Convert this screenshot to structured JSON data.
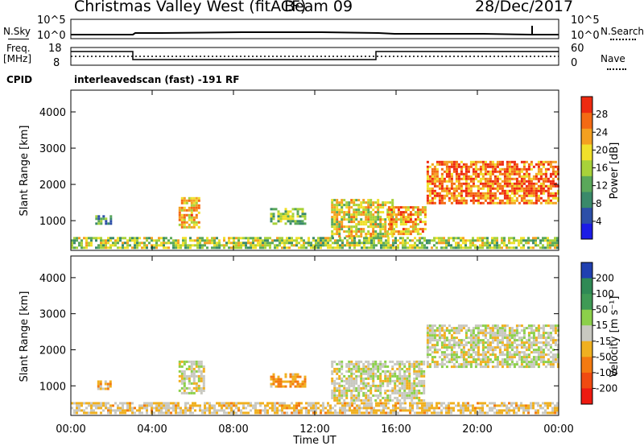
{
  "header": {
    "station": "Christmas Valley West (fitACF)",
    "beam": "Beam 09",
    "date": "28/Dec/2017"
  },
  "labels": {
    "nsky": "N.Sky",
    "nsearch": "N.Search",
    "freq": "Freq.",
    "freq_unit": "[MHz]",
    "nave": "Nave",
    "cpid": "CPID",
    "cpid_value": "interleavedscan (fast) -191 RF"
  },
  "noise_panel": {
    "left_ticks": [
      "10^5",
      "10^0"
    ],
    "right_ticks": [
      "10^5",
      "10^0"
    ]
  },
  "freq_panel": {
    "left_ticks": [
      "18",
      "8"
    ],
    "right_ticks": [
      "60",
      "0"
    ]
  },
  "colors": {
    "accent": "#000000"
  },
  "chart_data": [
    {
      "type": "heatmap",
      "quantity": "Power",
      "ylabel": "Slant Range [km]",
      "ylim": [
        180,
        4600
      ],
      "y_ticks": [
        "1000",
        "2000",
        "3000",
        "4000"
      ],
      "xlabel": "",
      "x_ticks": [],
      "xlim_hours": [
        0,
        24
      ],
      "colorbar": {
        "label": "Power [dB]",
        "ticks": [
          "4",
          "8",
          "12",
          "16",
          "20",
          "24",
          "28"
        ],
        "range": [
          0,
          32
        ],
        "colors": [
          "#1c1ce6",
          "#2d4fa8",
          "#3a8a6a",
          "#5aa85a",
          "#a8d23a",
          "#f0e02a",
          "#f4a020",
          "#f46a14",
          "#ee2a10"
        ]
      },
      "regions": [
        {
          "t0": 1.2,
          "t1": 2.0,
          "r0": 900,
          "r1": 1150,
          "level": 0.25
        },
        {
          "t0": 5.3,
          "t1": 6.3,
          "r0": 850,
          "r1": 1650,
          "level": 0.7
        },
        {
          "t0": 9.8,
          "t1": 11.5,
          "r0": 950,
          "r1": 1350,
          "level": 0.45
        },
        {
          "t0": 12.8,
          "t1": 15.8,
          "r0": 600,
          "r1": 1600,
          "level": 0.6
        },
        {
          "t0": 15.6,
          "t1": 17.4,
          "r0": 650,
          "r1": 1400,
          "level": 0.75
        },
        {
          "t0": 17.5,
          "t1": 24.0,
          "r0": 1500,
          "r1": 2650,
          "level": 0.85
        },
        {
          "t0": 0.0,
          "t1": 24.0,
          "r0": 250,
          "r1": 550,
          "level": 0.5
        }
      ]
    },
    {
      "type": "heatmap",
      "quantity": "Velocity",
      "ylabel": "Slant Range [km]",
      "ylim": [
        180,
        4600
      ],
      "y_ticks": [
        "1000",
        "2000",
        "3000",
        "4000"
      ],
      "xlabel": "Time UT",
      "x_ticks": [
        "00:00",
        "04:00",
        "08:00",
        "12:00",
        "16:00",
        "20:00",
        "00:00"
      ],
      "xlim_hours": [
        0,
        24
      ],
      "colorbar": {
        "label": "Velocity [m s⁻¹]",
        "ticks": [
          "200",
          "100",
          "50",
          "15",
          "-15",
          "-50",
          "-100",
          "-200"
        ],
        "range": [
          -250,
          250
        ],
        "colors": [
          "#2040b0",
          "#2f8a55",
          "#3f9a55",
          "#8cd04a",
          "#c8c8c0",
          "#f0b020",
          "#f47a10",
          "#f04a10",
          "#ee1a10"
        ]
      },
      "regions": [
        {
          "t0": 1.3,
          "t1": 2.0,
          "r0": 900,
          "r1": 1150,
          "vel": -50
        },
        {
          "t0": 5.3,
          "t1": 6.6,
          "r0": 800,
          "r1": 1700,
          "vel": 0
        },
        {
          "t0": 9.8,
          "t1": 11.5,
          "r0": 1000,
          "r1": 1350,
          "vel": -80
        },
        {
          "t0": 12.8,
          "t1": 17.4,
          "r0": 600,
          "r1": 1700,
          "vel": 0
        },
        {
          "t0": 17.5,
          "t1": 24.0,
          "r0": 1500,
          "r1": 2700,
          "vel": 0
        },
        {
          "t0": 0.0,
          "t1": 24.0,
          "r0": 250,
          "r1": 550,
          "vel": -40
        }
      ]
    }
  ]
}
